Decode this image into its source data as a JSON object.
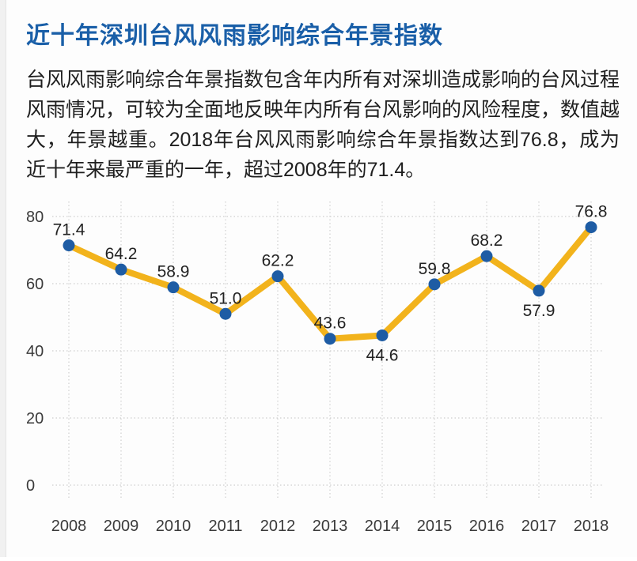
{
  "page": {
    "title": "近十年深圳台风风雨影响综合年景指数",
    "description": "台风风雨影响综合年景指数包含年内所有对深圳造成影响的台风过程风雨情况，可较为全面地反映年内所有台风影响的风险程度，数值越大，年景越重。2018年台风风雨影响综合年景指数达到76.8，成为近十年来最严重的一年，超过2008年的71.4。"
  },
  "colors": {
    "title_blue": "#1A5FA8",
    "line_yellow": "#F2B31C",
    "marker_blue": "#1E5CA4",
    "gridline": "#CFCFCF",
    "tick_label": "#3A3A3A",
    "data_label": "#222222",
    "body_text": "#1F1F1F"
  },
  "chart_data": {
    "type": "line",
    "title": "近十年深圳台风风雨影响综合年景指数",
    "categories": [
      "2008",
      "2009",
      "2010",
      "2011",
      "2012",
      "2013",
      "2014",
      "2015",
      "2016",
      "2017",
      "2018"
    ],
    "values": [
      71.4,
      64.2,
      58.9,
      51.0,
      62.2,
      43.6,
      44.6,
      59.8,
      68.2,
      57.9,
      76.8
    ],
    "labels": [
      "71.4",
      "64.2",
      "58.9",
      "51.0",
      "62.2",
      "43.6",
      "44.6",
      "59.8",
      "68.2",
      "57.9",
      "76.8"
    ],
    "label_positions": [
      "above",
      "above",
      "above",
      "above",
      "above",
      "above",
      "below",
      "above",
      "above",
      "below",
      "above"
    ],
    "xlabel": "",
    "ylabel": "",
    "yticks": [
      0,
      20,
      40,
      60,
      80
    ],
    "ylim": [
      0,
      84
    ],
    "grid": "dotted",
    "legend": "none"
  }
}
